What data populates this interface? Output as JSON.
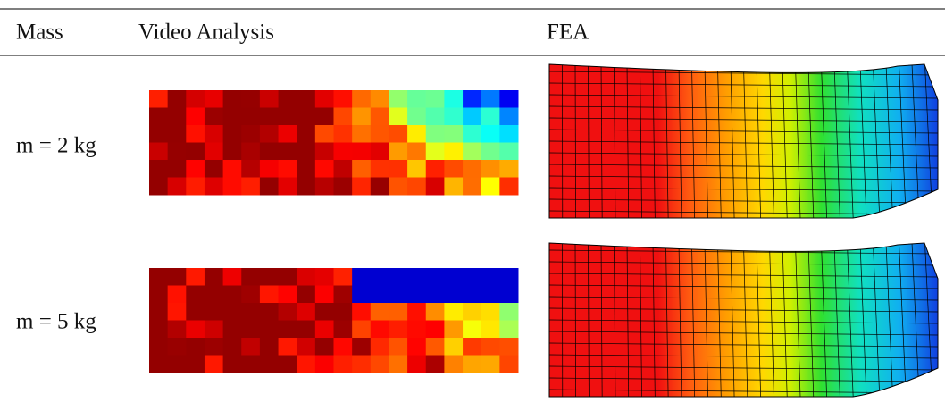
{
  "table": {
    "header": [
      "Mass",
      "Video Analysis",
      "FEA"
    ],
    "rows": [
      [
        "m = 2 kg"
      ],
      [
        "m = 5 kg"
      ]
    ]
  }
}
